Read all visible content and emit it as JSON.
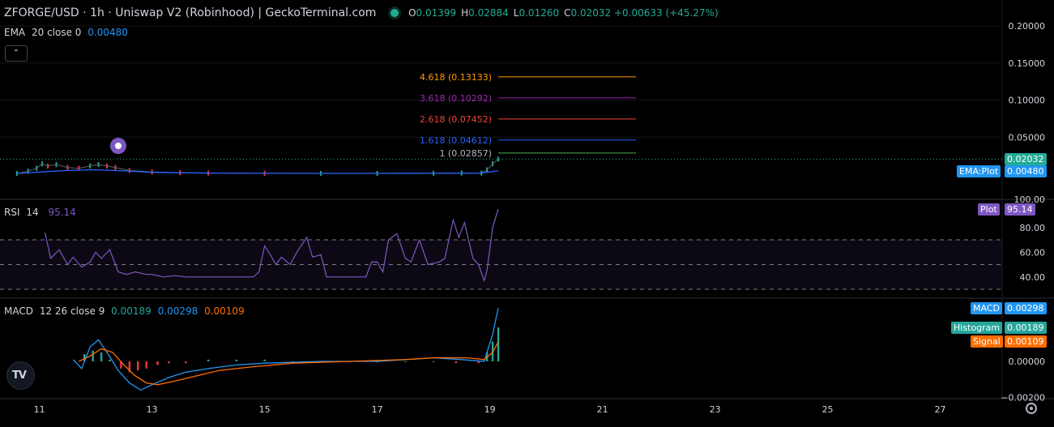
{
  "header": {
    "title": "ZFORGE/USD · 1h · Uniswap V2 (Robinhood) | GeckoTerminal.com",
    "ohlc": [
      {
        "key": "O",
        "value": "0.01399"
      },
      {
        "key": "H",
        "value": "0.02884"
      },
      {
        "key": "L",
        "value": "0.01260"
      },
      {
        "key": "C",
        "value": "0.02032"
      }
    ],
    "change": "+0.00633 (+45.27%)"
  },
  "ema_legend": {
    "name": "EMA",
    "params": "20 close 0",
    "value": "0.00480"
  },
  "rsi_legend": {
    "name": "RSI",
    "params": "14",
    "value": "95.14"
  },
  "macd_legend": {
    "name": "MACD",
    "params": "12 26 close 9",
    "v1": "0.00189",
    "v2": "0.00298",
    "v3": "0.00109"
  },
  "colors": {
    "up": "#22ab94",
    "down": "#f23645",
    "ema": "#2962ff",
    "ema_label": "#2196f3",
    "rsi": "#7e57c2",
    "macd": "#2196f3",
    "signal": "#ff6d00",
    "histogram": "#26a69a",
    "fib_4618": "#ff9800",
    "fib_3618": "#9c27b0",
    "fib_2618": "#f44336",
    "fib_1618": "#2962ff",
    "fib_1": "#4caf50"
  },
  "chart_data": [
    {
      "type": "line",
      "name": "price",
      "x_ticks": [
        "11",
        "13",
        "15",
        "17",
        "19",
        "21",
        "23",
        "25",
        "27"
      ],
      "x_range": [
        10.3,
        28.1
      ],
      "ylim": [
        0.0,
        0.2
      ],
      "y_ticks": [
        "0.20000",
        "0.15000",
        "0.10000",
        "0.05000"
      ],
      "price": {
        "x": [
          10.6,
          10.8,
          10.95,
          11.05,
          11.15,
          11.3,
          11.5,
          11.7,
          11.9,
          12.05,
          12.2,
          12.35,
          12.6,
          13.0,
          13.5,
          14.0,
          15.0,
          16.0,
          17.0,
          18.0,
          18.5,
          18.85,
          18.95,
          19.05,
          19.15
        ],
        "y": [
          0.001,
          0.004,
          0.008,
          0.014,
          0.011,
          0.013,
          0.009,
          0.008,
          0.011,
          0.013,
          0.011,
          0.009,
          0.005,
          0.003,
          0.002,
          0.0015,
          0.0012,
          0.0012,
          0.0012,
          0.0013,
          0.0014,
          0.0015,
          0.006,
          0.014,
          0.0203
        ]
      },
      "ema": {
        "x": [
          10.6,
          11.0,
          11.5,
          12.0,
          12.5,
          13.0,
          14.0,
          15.0,
          16.0,
          17.0,
          18.0,
          18.8,
          19.0,
          19.15
        ],
        "y": [
          0.001,
          0.003,
          0.005,
          0.006,
          0.0045,
          0.0025,
          0.0015,
          0.0012,
          0.0011,
          0.0011,
          0.0012,
          0.0014,
          0.003,
          0.0048
        ]
      },
      "fib_levels": [
        {
          "label": "4.618 (0.13133)",
          "value": 0.13133,
          "color_key": "fib_4618"
        },
        {
          "label": "3.618 (0.10292)",
          "value": 0.10292,
          "color_key": "fib_3618"
        },
        {
          "label": "2.618 (0.07452)",
          "value": 0.07452,
          "color_key": "fib_2618"
        },
        {
          "label": "1.618 (0.04612)",
          "value": 0.04612,
          "color_key": "fib_1618"
        },
        {
          "label": "1 (0.02857)",
          "value": 0.02857,
          "color_key": "fib_1"
        }
      ],
      "fib_x_range": [
        19.15,
        21.6
      ],
      "last_price": {
        "label": "0.02032",
        "value": 0.02032
      },
      "ema_plot": {
        "tag": "EMA:Plot",
        "label": "0.00480",
        "value": 0.0048
      },
      "clipped_tick": "100.00"
    },
    {
      "type": "line",
      "name": "rsi",
      "ylim": [
        28,
        100
      ],
      "y_ticks": [
        "80.00",
        "60.00",
        "40.00"
      ],
      "bands": [
        70,
        50,
        30
      ],
      "x": [
        11.1,
        11.2,
        11.35,
        11.5,
        11.6,
        11.75,
        11.9,
        12.0,
        12.1,
        12.25,
        12.4,
        12.55,
        12.7,
        12.9,
        13.0,
        13.2,
        13.4,
        13.6,
        13.8,
        14.0,
        14.5,
        14.8,
        14.9,
        15.0,
        15.1,
        15.2,
        15.3,
        15.45,
        15.6,
        15.75,
        15.85,
        16.0,
        16.1,
        16.5,
        16.8,
        16.9,
        17.0,
        17.1,
        17.2,
        17.35,
        17.5,
        17.6,
        17.75,
        17.9,
        18.1,
        18.2,
        18.35,
        18.45,
        18.55,
        18.7,
        18.8,
        18.9,
        18.95,
        19.05,
        19.15
      ],
      "y": [
        76,
        55,
        62,
        50,
        56,
        48,
        52,
        60,
        55,
        62,
        44,
        42,
        44,
        42,
        42,
        40,
        41,
        40,
        40,
        40,
        40,
        40,
        44,
        65,
        58,
        50,
        56,
        50,
        62,
        72,
        56,
        58,
        40,
        40,
        40,
        52,
        52,
        44,
        70,
        75,
        55,
        52,
        70,
        50,
        52,
        55,
        86,
        72,
        84,
        55,
        50,
        37,
        45,
        80,
        95
      ]
    },
    {
      "type": "bar",
      "name": "macd",
      "ylim": [
        -0.0021,
        0.0035
      ],
      "y_ticks": [
        "0.00000",
        "−0.00200"
      ],
      "macd": {
        "x": [
          11.6,
          11.75,
          11.9,
          12.05,
          12.2,
          12.4,
          12.6,
          12.8,
          13.0,
          13.3,
          13.6,
          14.0,
          14.5,
          15.0,
          16.0,
          17.0,
          17.5,
          18.0,
          18.5,
          18.9,
          19.05,
          19.15
        ],
        "y": [
          0.0001,
          -0.0004,
          0.0008,
          0.0012,
          0.0005,
          -0.0005,
          -0.0012,
          -0.0016,
          -0.0013,
          -0.0009,
          -0.0006,
          -0.0004,
          -0.0002,
          -0.0001,
          0.0,
          0.0,
          0.0001,
          0.0002,
          0.0001,
          0.0,
          0.0015,
          0.00298
        ]
      },
      "signal": {
        "x": [
          11.7,
          11.9,
          12.1,
          12.3,
          12.5,
          12.7,
          12.9,
          13.1,
          13.4,
          13.8,
          14.2,
          14.8,
          15.5,
          16.5,
          17.5,
          18.0,
          18.6,
          18.9,
          19.05,
          19.15
        ],
        "y": [
          0.0,
          0.0003,
          0.0007,
          0.0005,
          -0.0002,
          -0.0008,
          -0.0012,
          -0.0013,
          -0.0011,
          -0.0008,
          -0.0005,
          -0.0003,
          -0.0001,
          0.0,
          0.0001,
          0.0002,
          0.0002,
          0.0001,
          0.0005,
          0.00109
        ]
      },
      "histogram": {
        "x": [
          11.8,
          11.95,
          12.1,
          12.25,
          12.45,
          12.6,
          12.75,
          12.9,
          13.1,
          13.3,
          13.6,
          14.0,
          14.5,
          15.0,
          15.5,
          16.0,
          16.5,
          17.0,
          17.5,
          18.0,
          18.4,
          18.8,
          18.95,
          19.05,
          19.15
        ],
        "y": [
          0.0004,
          0.0006,
          0.0005,
          0.0001,
          -0.0004,
          -0.0006,
          -0.0005,
          -0.0004,
          -0.0002,
          -0.0001,
          -0.0001,
          0.0001,
          0.0001,
          0.0001,
          0.0,
          0.0,
          0.0,
          0.0,
          0.0,
          0.0,
          -0.0001,
          -0.0001,
          0.0005,
          0.0011,
          0.00189
        ]
      },
      "labels": [
        {
          "tag": "MACD",
          "label": "0.00298",
          "value": 0.00298,
          "color_key": "macd"
        },
        {
          "tag": "Histogram",
          "label": "0.00189",
          "value": 0.00189,
          "color_key": "histogram"
        },
        {
          "tag": "Signal",
          "label": "0.00109",
          "value": 0.00109,
          "color_key": "signal"
        }
      ]
    }
  ],
  "rsi_plot": {
    "tag": "Plot",
    "label": "95.14",
    "value": 95.14
  },
  "controls": {
    "collapse": "⌃",
    "logo": "TV"
  }
}
